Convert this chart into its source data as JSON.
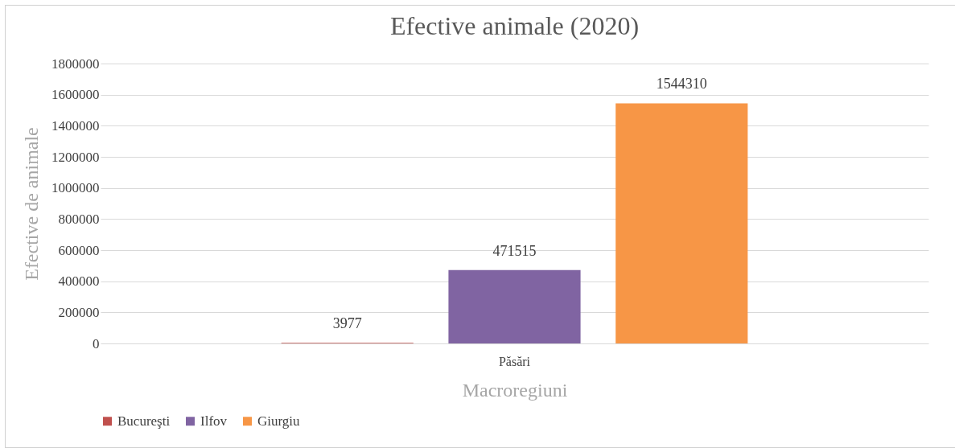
{
  "chart_data": {
    "type": "bar",
    "title": "Efective animale (2020)",
    "xlabel": "Macroregiuni",
    "ylabel": "Efective de animale",
    "categories": [
      "Păsări"
    ],
    "series": [
      {
        "name": "Bucureşti",
        "color": "#c0504d",
        "values": [
          3977
        ]
      },
      {
        "name": "Ilfov",
        "color": "#8064a2",
        "values": [
          471515
        ]
      },
      {
        "name": "Giurgiu",
        "color": "#f79646",
        "values": [
          1544310
        ]
      }
    ],
    "ylim": [
      0,
      1800000
    ],
    "yticks": [
      0,
      200000,
      400000,
      600000,
      800000,
      1000000,
      1200000,
      1400000,
      1600000,
      1800000
    ],
    "grid": "y",
    "legend": "bottom",
    "data_labels": true
  }
}
